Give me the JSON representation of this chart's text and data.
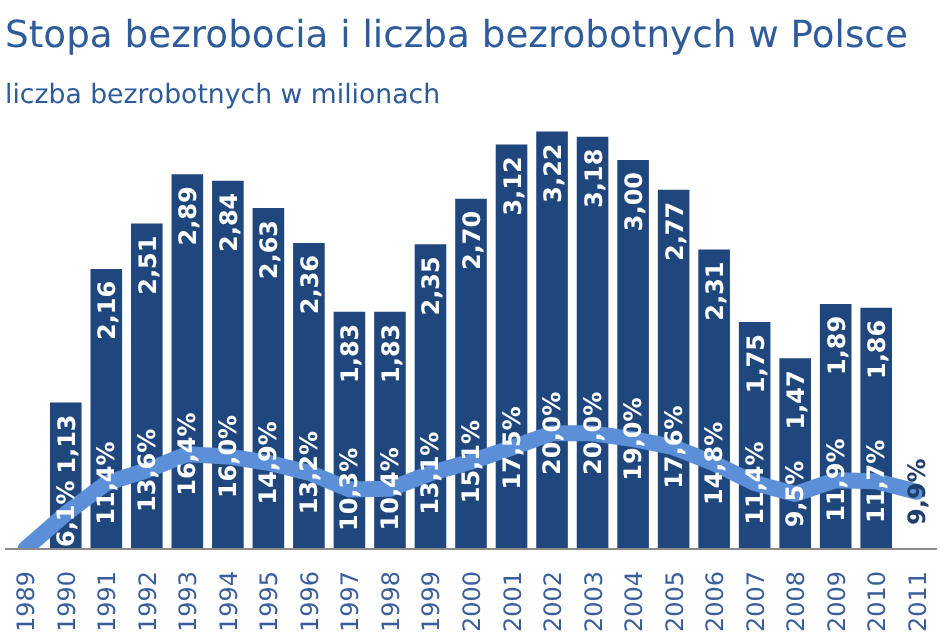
{
  "chart_data": {
    "type": "bar",
    "title": "Stopa bezrobocia i liczba bezrobotnych w Polsce",
    "subtitle": "liczba bezrobotnych w milionach",
    "categories": [
      "1989",
      "1990",
      "1991",
      "1992",
      "1993",
      "1994",
      "1995",
      "1996",
      "1997",
      "1998",
      "1999",
      "2000",
      "2001",
      "2002",
      "2003",
      "2004",
      "2005",
      "2006",
      "2007",
      "2008",
      "2009",
      "2010",
      "2011"
    ],
    "tick_labels": "x",
    "series": [
      {
        "color": "#1f477d",
        "values": [
          null,
          1.13,
          2.16,
          2.51,
          2.89,
          2.84,
          2.63,
          2.36,
          1.83,
          1.83,
          2.35,
          2.7,
          3.12,
          3.22,
          3.18,
          3.0,
          2.77,
          2.31,
          1.75,
          1.47,
          1.89,
          1.86,
          null
        ],
        "value_labels": [
          null,
          "1,13",
          "2,16",
          "2,51",
          "2,89",
          "2,84",
          "2,63",
          "2,36",
          "1,83",
          "1,83",
          "2,35",
          "2,70",
          "3,12",
          "3,22",
          "3,18",
          "3,00",
          "2,77",
          "2,31",
          "1,75",
          "1,47",
          "1,89",
          "1,86",
          null
        ]
      },
      {
        "type": "line",
        "axis": "y2",
        "color": "#5b8fd8",
        "line_style": "solid",
        "marker": "none",
        "values": [
          0,
          6.1,
          11.4,
          13.6,
          16.4,
          16.0,
          14.9,
          13.2,
          10.3,
          10.4,
          13.1,
          15.1,
          17.5,
          20.0,
          20.0,
          19.0,
          17.6,
          14.8,
          11.4,
          9.5,
          11.9,
          11.7,
          9.9
        ],
        "value_labels": [
          null,
          "6,1%",
          "11,4%",
          "13,6%",
          "16,4%",
          "16,0%",
          "14,9%",
          "13,2%",
          "10,3%",
          "10,4%",
          "13,1%",
          "15,1%",
          "17,5%",
          "20,0%",
          "20,0%",
          "19,0%",
          "17,6%",
          "14,8%",
          "11,4%",
          "9,5%",
          "11,9%",
          "11,7%",
          "9,9%"
        ]
      }
    ]
  }
}
